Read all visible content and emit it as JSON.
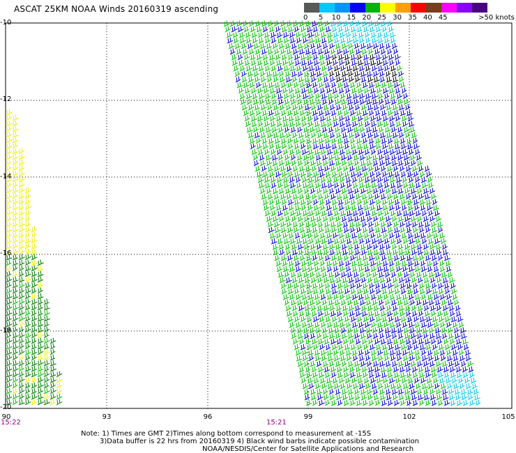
{
  "title": "ASCAT 25KM NOAA Winds 20160319 ascending",
  "legend": {
    "labels": [
      "0",
      "5",
      "10",
      "15",
      "20",
      "25",
      "30",
      "35",
      "40",
      "45",
      ">50 knots"
    ],
    "colors": [
      "#595959",
      "#00c8ff",
      "#0096ff",
      "#0000ff",
      "#00b400",
      "#ffff00",
      "#ffa000",
      "#ff0000",
      "#7a3c1a",
      "#ff00ff",
      "#8a00ff",
      "#4a0082"
    ]
  },
  "axes": {
    "lat_labels": [
      "-10",
      "-12",
      "-14",
      "-16",
      "-18",
      "-20"
    ],
    "lon_labels": [
      "90",
      "93",
      "96",
      "99",
      "102",
      "105"
    ]
  },
  "times": [
    "15:22",
    "15:21"
  ],
  "notes": {
    "line1": "Note: 1) Times are GMT 2)Times along bottom correspond to measurement at -15S",
    "line2": "3)Data buffer is 22 hrs from 20160319 4) Black wind barbs indicate possible contamination",
    "line3": "NOAA/NESDIS/Center for Satellite Applications and Research"
  },
  "swath_colors": {
    "green": "#00c000",
    "dark_green": "#007a00",
    "blue": "#0000cc",
    "yellow": "#f0f000",
    "cyan": "#00c8e6",
    "black": "#000000"
  }
}
